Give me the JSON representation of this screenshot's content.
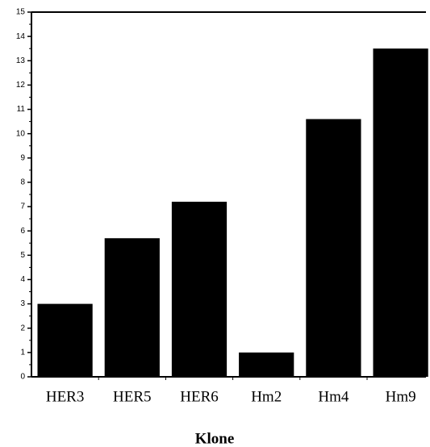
{
  "chart_data": {
    "type": "bar",
    "x_label": "Klone",
    "categories": [
      "HER3",
      "HER5",
      "HER6",
      "Hm2",
      "Hm4",
      "Hm9"
    ],
    "values": [
      3,
      5.7,
      7.2,
      1,
      10.6,
      13.5
    ],
    "color": "#000000",
    "ylim": [
      0,
      15
    ],
    "yticks": [
      0,
      1,
      2,
      3,
      4,
      5,
      6,
      7,
      8,
      9,
      10,
      11,
      12,
      13,
      14,
      15
    ]
  }
}
